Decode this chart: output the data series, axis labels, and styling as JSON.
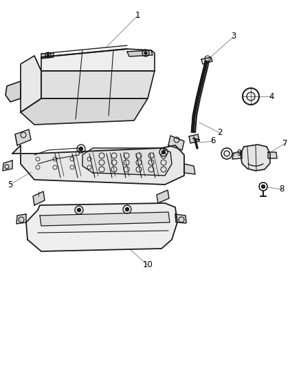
{
  "background_color": "#ffffff",
  "line_color": "#1a1a1a",
  "label_color": "#000000",
  "leader_color": "#888888",
  "figsize": [
    4.38,
    5.33
  ],
  "dpi": 100
}
